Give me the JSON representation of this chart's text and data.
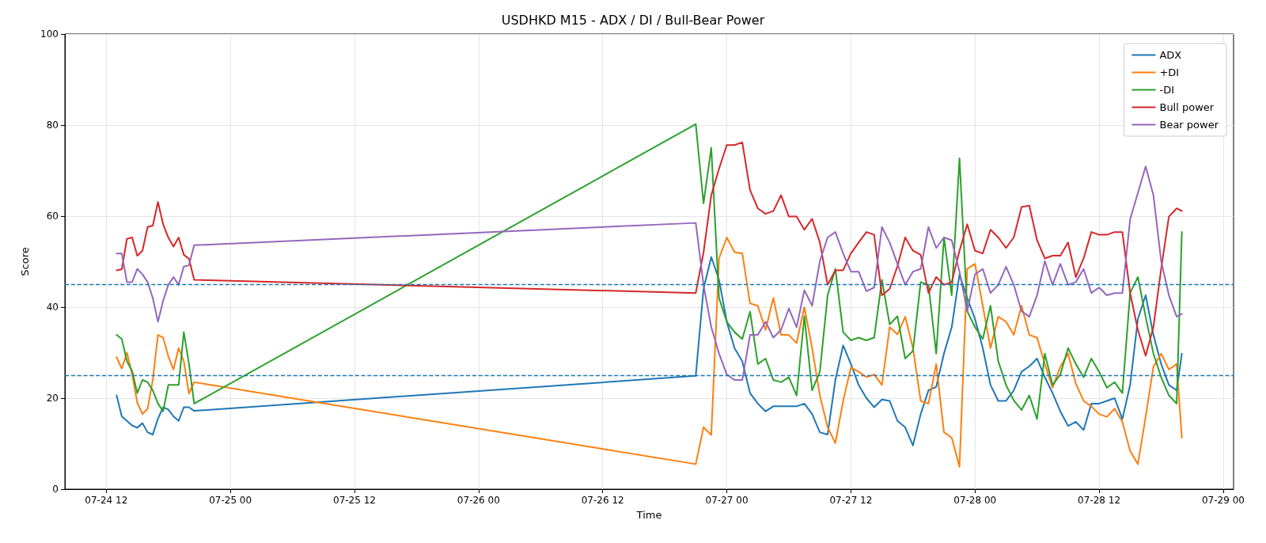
{
  "chart_data": {
    "type": "line",
    "title": "USDHKD M15 - ADX / DI / Bull-Bear Power",
    "xlabel": "Time",
    "ylabel": "Score",
    "x": [
      "--07-24T13:00",
      "--07-24T13:30",
      "--07-24T14:00",
      "--07-24T14:30",
      "--07-24T15:00",
      "--07-24T15:30",
      "--07-24T16:00",
      "--07-24T16:30",
      "--07-24T17:00",
      "--07-24T17:30",
      "--07-24T18:00",
      "--07-24T18:30",
      "--07-24T19:00",
      "--07-24T19:30",
      "--07-24T20:00",
      "--07-24T20:30",
      "--07-26T21:00",
      "--07-26T21:45",
      "--07-26T22:30",
      "--07-26T23:15",
      "--07-27T00:00",
      "--07-27T00:45",
      "--07-27T01:30",
      "--07-27T02:15",
      "--07-27T03:00",
      "--07-27T03:45",
      "--07-27T04:30",
      "--07-27T05:15",
      "--07-27T06:00",
      "--07-27T06:45",
      "--07-27T07:30",
      "--07-27T08:15",
      "--07-27T09:00",
      "--07-27T09:45",
      "--07-27T10:30",
      "--07-27T11:15",
      "--07-27T12:00",
      "--07-27T12:45",
      "--07-27T13:30",
      "--07-27T14:15",
      "--07-27T15:00",
      "--07-27T15:45",
      "--07-27T16:30",
      "--07-27T17:15",
      "--07-27T18:00",
      "--07-27T18:45",
      "--07-27T19:30",
      "--07-27T20:15",
      "--07-27T21:00",
      "--07-27T21:45",
      "--07-27T22:30",
      "--07-27T23:15",
      "--07-28T00:00",
      "--07-28T00:45",
      "--07-28T01:30",
      "--07-28T02:15",
      "--07-28T03:00",
      "--07-28T03:45",
      "--07-28T04:30",
      "--07-28T05:15",
      "--07-28T06:00",
      "--07-28T06:45",
      "--07-28T07:30",
      "--07-28T08:15",
      "--07-28T09:00",
      "--07-28T09:45",
      "--07-28T10:30",
      "--07-28T11:15",
      "--07-28T12:00",
      "--07-28T12:45",
      "--07-28T13:30",
      "--07-28T14:15",
      "--07-28T15:00",
      "--07-28T15:45",
      "--07-28T16:30",
      "--07-28T17:15",
      "--07-28T18:00",
      "--07-28T18:45",
      "--07-28T19:30",
      "--07-28T20:00"
    ],
    "series": [
      {
        "name": "ADX",
        "color": "#1f77b4",
        "values": [
          20.6,
          16,
          15,
          14,
          13.5,
          14.5,
          12.5,
          12,
          15.5,
          18,
          17.5,
          16,
          15,
          18,
          18,
          17.2,
          24.9,
          44,
          51,
          46,
          36.8,
          31,
          28.1,
          21.1,
          18.8,
          17.1,
          18.2,
          18.2,
          18.2,
          18.2,
          18.8,
          16.5,
          12.5,
          12,
          24,
          31.6,
          27.5,
          22.9,
          20,
          18,
          19.7,
          19.4,
          15,
          13.6,
          9.6,
          16.5,
          21.7,
          22.5,
          29.8,
          35.6,
          47.2,
          42,
          37.4,
          31,
          22.9,
          19.4,
          19.4,
          21.7,
          25.8,
          27,
          28.7,
          24.6,
          21.1,
          17.1,
          13.9,
          14.8,
          13,
          18.8,
          18.8,
          19.4,
          20,
          15.4,
          22.9,
          37.4,
          42.6,
          33.9,
          27.5,
          22.9,
          21.7,
          29.8
        ]
      },
      {
        "name": "+DI",
        "color": "#ff7f0e",
        "values": [
          29,
          26.5,
          30,
          25.2,
          19,
          16.5,
          17.7,
          24,
          33.9,
          33.3,
          29.2,
          26.3,
          31,
          28.1,
          21,
          23.5,
          5.5,
          13.6,
          11.9,
          50.7,
          55.3,
          52.1,
          51.8,
          40.8,
          40.3,
          35,
          42,
          33.9,
          33.9,
          32.1,
          40,
          31,
          20.6,
          13.6,
          10.1,
          19.4,
          26.7,
          25.8,
          24.6,
          25.2,
          22.9,
          35.6,
          34,
          37.9,
          31,
          19.4,
          18.8,
          27.5,
          12.5,
          11.3,
          4.9,
          48.4,
          49.5,
          40.3,
          31,
          37.9,
          36.8,
          33.9,
          40.3,
          33.9,
          33.3,
          27.5,
          22.3,
          26.9,
          29.8,
          23.2,
          19.4,
          18.2,
          16.5,
          15.9,
          17.7,
          14.8,
          8.4,
          5.5,
          15.9,
          26.9,
          29.8,
          26.3,
          27.5,
          11.3
        ]
      },
      {
        "name": "-DI",
        "color": "#2ca02c",
        "values": [
          33.9,
          33,
          28.1,
          26,
          21.1,
          24,
          23.5,
          21.7,
          18.8,
          17.1,
          22.9,
          22.9,
          22.9,
          34.5,
          27.5,
          18.8,
          80.2,
          62.8,
          75,
          42,
          36.8,
          34.5,
          33,
          39,
          27.5,
          28.7,
          24,
          23.5,
          24.6,
          20.6,
          38,
          21.7,
          25.8,
          42.6,
          48.4,
          34.5,
          32.7,
          33.3,
          32.7,
          33.3,
          46,
          36.2,
          38,
          28.7,
          30.4,
          45.5,
          44.9,
          29.8,
          55.3,
          42.6,
          72.7,
          39.1,
          35.6,
          33,
          40.3,
          28.1,
          22.9,
          19.5,
          17.4,
          20.6,
          15.4,
          29.8,
          22.9,
          25.2,
          31,
          27.5,
          24.6,
          28.7,
          25.8,
          22.3,
          23.5,
          21.1,
          43.1,
          46.6,
          37.9,
          29.8,
          24.6,
          20.6,
          18.8,
          56.5
        ]
      },
      {
        "name": "Bull power",
        "color": "#d62728",
        "values": [
          48.1,
          48.3,
          55,
          55.3,
          51.3,
          52.4,
          57.6,
          57.9,
          63.1,
          58.2,
          55.3,
          53.3,
          55.3,
          51.5,
          50.6,
          46,
          43.1,
          52,
          64.6,
          70.4,
          75.6,
          75.6,
          76.2,
          65.7,
          61.7,
          60.5,
          61.1,
          64.6,
          59.9,
          59.9,
          57,
          59.4,
          54.2,
          44.9,
          48.1,
          48.1,
          51.8,
          54.2,
          56.5,
          55.9,
          42.6,
          44,
          49,
          55.3,
          52.4,
          51.5,
          43.1,
          46.6,
          44.9,
          45.5,
          52.4,
          58.2,
          52.4,
          51.8,
          57,
          55.3,
          53,
          55.3,
          62,
          62.3,
          54.7,
          50.7,
          51.3,
          51.3,
          54.2,
          46.6,
          50.7,
          56.5,
          55.9,
          55.9,
          56.5,
          56.5,
          43.1,
          35,
          29.3,
          35.6,
          48.4,
          59.9,
          61.7,
          61.1
        ]
      },
      {
        "name": "Bear power",
        "color": "#9467bd",
        "values": [
          51.8,
          51.8,
          45.5,
          45.5,
          48.4,
          47.2,
          45.5,
          42,
          36.8,
          41.4,
          44.9,
          46.6,
          44.9,
          48.9,
          49.2,
          53.6,
          58.5,
          44.9,
          35.6,
          29.8,
          25.2,
          24,
          24,
          33.9,
          33.9,
          36.8,
          33.3,
          35,
          39.7,
          35.6,
          43.7,
          40.3,
          50.1,
          55.3,
          56.5,
          51.8,
          47.8,
          47.8,
          43.5,
          44.3,
          57.6,
          54.2,
          49.5,
          44.9,
          47.8,
          48.4,
          57.6,
          53,
          55.3,
          54.7,
          47.8,
          39.1,
          47.2,
          48.4,
          43.1,
          44.9,
          48.9,
          44.9,
          39.1,
          37.9,
          42.6,
          50.1,
          44.9,
          49.5,
          44.9,
          45.5,
          48.4,
          43.1,
          44.3,
          42.6,
          43.1,
          43.1,
          59.3,
          65.1,
          70.9,
          64.6,
          50.1,
          42.6,
          37.9,
          38.5
        ]
      }
    ],
    "xlim": [
      "--07-24T08:00",
      "--07-29T01:00"
    ],
    "xticks": [
      {
        "value": "--07-24T12:00",
        "label": "07-24 12"
      },
      {
        "value": "--07-25T00:00",
        "label": "07-25 00"
      },
      {
        "value": "--07-25T12:00",
        "label": "07-25 12"
      },
      {
        "value": "--07-26T00:00",
        "label": "07-26 00"
      },
      {
        "value": "--07-26T12:00",
        "label": "07-26 12"
      },
      {
        "value": "--07-27T00:00",
        "label": "07-27 00"
      },
      {
        "value": "--07-27T12:00",
        "label": "07-27 12"
      },
      {
        "value": "--07-28T00:00",
        "label": "07-28 00"
      },
      {
        "value": "--07-28T12:00",
        "label": "07-28 12"
      },
      {
        "value": "--07-29T00:00",
        "label": "07-29 00"
      }
    ],
    "ylim": [
      0,
      100
    ],
    "yticks": [
      0,
      20,
      40,
      60,
      80,
      100
    ],
    "ref_lines": [
      {
        "axis": "y",
        "value": 45,
        "color": "#1f77b4",
        "line_style": "dashed"
      },
      {
        "axis": "y",
        "value": 25,
        "color": "#1f77b4",
        "line_style": "dashed"
      }
    ],
    "grid": true,
    "legend": "top right"
  }
}
